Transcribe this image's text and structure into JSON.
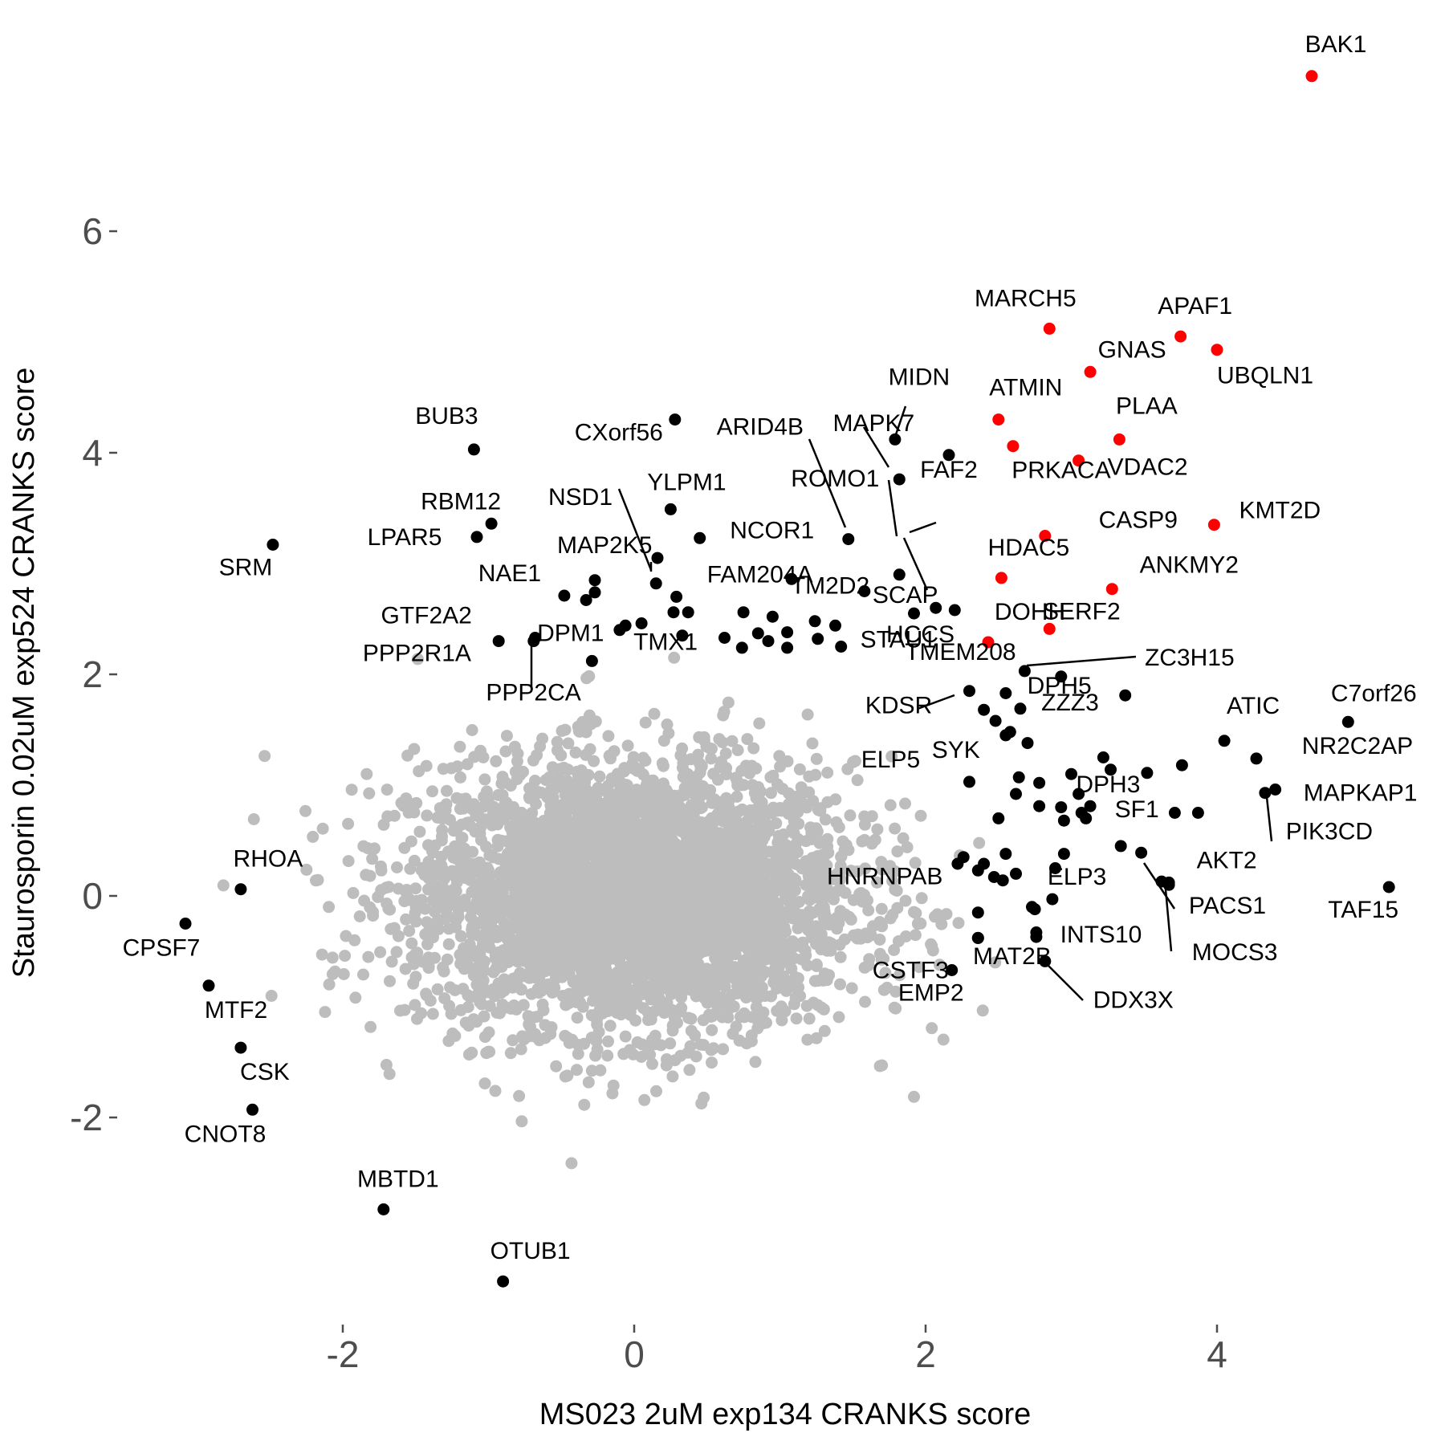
{
  "chart_data": {
    "type": "scatter",
    "title": "",
    "xlabel": "MS023 2uM exp134 CRANKS score",
    "ylabel": "Staurosporin 0.02uM exp524 CRANKS score",
    "xlim": [
      -3.0,
      5.3
    ],
    "ylim": [
      -3.6,
      7.3
    ],
    "x_ticks": [
      -2,
      0,
      2,
      4
    ],
    "x_tick_labels": [
      "-2",
      "0",
      "2",
      "4"
    ],
    "y_ticks": [
      -2,
      0,
      2,
      4,
      6
    ],
    "y_tick_labels": [
      "-2",
      "0",
      "2",
      "4",
      "6"
    ],
    "grid": false,
    "legend": "none",
    "colors": {
      "background": "#bdbdbd",
      "highlighted": "#000000",
      "top_hits": "#ff0000",
      "axis_text": "#4d4d4d"
    },
    "background_points": {
      "description_count": 4000,
      "center": [
        0,
        0
      ],
      "spread_x": 0.75,
      "spread_y": 0.6
    },
    "series": [
      {
        "name": "red",
        "color": "#ff0000",
        "points": [
          {
            "label": "BAK1",
            "x": 4.65,
            "y": 7.4
          },
          {
            "label": "MARCH5",
            "x": 2.85,
            "y": 5.12
          },
          {
            "label": "APAF1",
            "x": 3.75,
            "y": 5.05
          },
          {
            "label": "UBQLN1",
            "x": 4.0,
            "y": 4.93
          },
          {
            "label": "GNAS",
            "x": 3.13,
            "y": 4.73
          },
          {
            "label": "ATMIN",
            "x": 2.5,
            "y": 4.3
          },
          {
            "label": "PLAA",
            "x": 3.33,
            "y": 4.12
          },
          {
            "label": "PRKACA",
            "x": 2.6,
            "y": 4.06
          },
          {
            "label": "VDAC2",
            "x": 3.05,
            "y": 3.93
          },
          {
            "label": "CASP9",
            "x": 2.82,
            "y": 3.25
          },
          {
            "label": "KMT2D",
            "x": 3.98,
            "y": 3.35
          },
          {
            "label": "HDAC5",
            "x": 2.52,
            "y": 2.87
          },
          {
            "label": "ANKMY2",
            "x": 3.28,
            "y": 2.77
          },
          {
            "label": "SERF2",
            "x": 2.85,
            "y": 2.41
          },
          {
            "label": "DOHH",
            "x": 2.43,
            "y": 2.29
          }
        ]
      },
      {
        "name": "black",
        "color": "#000000",
        "points": [
          {
            "label": "BUB3",
            "x": -1.1,
            "y": 4.03
          },
          {
            "label": "SRM",
            "x": -2.48,
            "y": 3.17
          },
          {
            "label": "RBM12",
            "x": -0.98,
            "y": 3.36
          },
          {
            "label": "LPAR5",
            "x": -1.08,
            "y": 3.24
          },
          {
            "label": "CXorf56",
            "x": 0.28,
            "y": 4.3
          },
          {
            "label": "NSD1",
            "x": 0.16,
            "y": 3.05
          },
          {
            "label": "YLPM1",
            "x": 0.25,
            "y": 3.49
          },
          {
            "label": "MAP2K5",
            "x": 0.15,
            "y": 2.82
          },
          {
            "label": "NCOR1",
            "x": 0.45,
            "y": 3.23
          },
          {
            "label": "FAM204A",
            "x": 0.29,
            "y": 2.7
          },
          {
            "label": "ARID4B",
            "x": 1.47,
            "y": 3.22
          },
          {
            "label": "MIDN",
            "x": 1.79,
            "y": 4.12
          },
          {
            "label": "MAPK7",
            "x": 1.82,
            "y": 3.76
          },
          {
            "label": "FAF2",
            "x": 2.16,
            "y": 3.98
          },
          {
            "label": "ROMO1",
            "x": 1.82,
            "y": 2.9
          },
          {
            "label": "SCAP",
            "x": 2.07,
            "y": 2.6
          },
          {
            "label": "HCCS",
            "x": 1.92,
            "y": 2.55
          },
          {
            "label": "TM2D2",
            "x": 1.08,
            "y": 2.86
          },
          {
            "label": "STAU1",
            "x": 1.58,
            "y": 2.75
          },
          {
            "label": "NAE1",
            "x": -0.48,
            "y": 2.71
          },
          {
            "label": "GTF2A2",
            "x": -0.93,
            "y": 2.3
          },
          {
            "label": "DPM1",
            "x": -0.69,
            "y": 2.3
          },
          {
            "label": "PPP2R1A",
            "x": -0.29,
            "y": 2.12
          },
          {
            "label": "PPP2CA",
            "x": -0.68,
            "y": 2.33
          },
          {
            "label": "TMX1",
            "x": -0.06,
            "y": 2.44
          },
          {
            "label": "TMEM208",
            "x": 2.68,
            "y": 2.03
          },
          {
            "label": "ZC3H15",
            "x": 2.93,
            "y": 1.98
          },
          {
            "label": "KDSR",
            "x": 2.3,
            "y": 1.85
          },
          {
            "label": "ZZZ3",
            "x": 2.65,
            "y": 1.69
          },
          {
            "label": "SYK",
            "x": 2.55,
            "y": 1.45
          },
          {
            "label": "ATIC",
            "x": 4.05,
            "y": 1.4
          },
          {
            "label": "C7orf26",
            "x": 4.9,
            "y": 1.57
          },
          {
            "label": "DPH5",
            "x": 3.37,
            "y": 1.81
          },
          {
            "label": "NR2C2AP",
            "x": 4.27,
            "y": 1.24
          },
          {
            "label": "DPH3",
            "x": 3.76,
            "y": 1.18
          },
          {
            "label": "MAPKAP1",
            "x": 4.4,
            "y": 0.96
          },
          {
            "label": "PIK3CD",
            "x": 4.33,
            "y": 0.93
          },
          {
            "label": "ELP5",
            "x": 2.3,
            "y": 1.03
          },
          {
            "label": "SF1",
            "x": 3.34,
            "y": 0.45
          },
          {
            "label": "ELP3",
            "x": 3.48,
            "y": 0.39
          },
          {
            "label": "AKT2",
            "x": 3.67,
            "y": 0.12
          },
          {
            "label": "PACS1",
            "x": 3.62,
            "y": 0.13
          },
          {
            "label": "MOCS3",
            "x": 3.67,
            "y": 0.1
          },
          {
            "label": "TAF15",
            "x": 5.18,
            "y": 0.08
          },
          {
            "label": "HNRNPAB",
            "x": 2.26,
            "y": 0.35
          },
          {
            "label": "INTS10",
            "x": 2.73,
            "y": -0.1
          },
          {
            "label": "CSTF3",
            "x": 2.36,
            "y": -0.38
          },
          {
            "label": "EMP2",
            "x": 2.18,
            "y": -0.67
          },
          {
            "label": "MAT2B",
            "x": 2.76,
            "y": -0.37
          },
          {
            "label": "DDX3X",
            "x": 2.82,
            "y": -0.59
          },
          {
            "label": "RHOA",
            "x": -2.7,
            "y": 0.06
          },
          {
            "label": "CPSF7",
            "x": -3.08,
            "y": -0.25
          },
          {
            "label": "MTF2",
            "x": -2.92,
            "y": -0.81
          },
          {
            "label": "CSK",
            "x": -2.7,
            "y": -1.37
          },
          {
            "label": "CNOT8",
            "x": -2.62,
            "y": -1.93
          },
          {
            "label": "MBTD1",
            "x": -1.72,
            "y": -2.83
          },
          {
            "label": "OTUB1",
            "x": -0.9,
            "y": -3.48
          }
        ]
      },
      {
        "name": "black-unlabeled",
        "color": "#000000",
        "points": [
          {
            "x": -0.27,
            "y": 2.85
          },
          {
            "x": -0.27,
            "y": 2.74
          },
          {
            "x": -0.33,
            "y": 2.67
          },
          {
            "x": -0.1,
            "y": 2.4
          },
          {
            "x": 0.05,
            "y": 2.46
          },
          {
            "x": 0.27,
            "y": 2.56
          },
          {
            "x": 0.37,
            "y": 2.56
          },
          {
            "x": 0.33,
            "y": 2.35
          },
          {
            "x": 0.62,
            "y": 2.33
          },
          {
            "x": 0.75,
            "y": 2.56
          },
          {
            "x": 0.74,
            "y": 2.24
          },
          {
            "x": 0.85,
            "y": 2.37
          },
          {
            "x": 0.92,
            "y": 2.3
          },
          {
            "x": 0.95,
            "y": 2.52
          },
          {
            "x": 1.05,
            "y": 2.38
          },
          {
            "x": 1.05,
            "y": 2.24
          },
          {
            "x": 1.24,
            "y": 2.48
          },
          {
            "x": 1.26,
            "y": 2.32
          },
          {
            "x": 1.38,
            "y": 2.44
          },
          {
            "x": 1.42,
            "y": 2.25
          },
          {
            "x": 2.2,
            "y": 2.58
          },
          {
            "x": 2.55,
            "y": 1.83
          },
          {
            "x": 2.4,
            "y": 1.68
          },
          {
            "x": 2.48,
            "y": 1.58
          },
          {
            "x": 2.58,
            "y": 1.48
          },
          {
            "x": 2.7,
            "y": 1.38
          },
          {
            "x": 2.64,
            "y": 1.07
          },
          {
            "x": 2.62,
            "y": 0.92
          },
          {
            "x": 2.5,
            "y": 0.7
          },
          {
            "x": 2.4,
            "y": 0.29
          },
          {
            "x": 2.55,
            "y": 0.38
          },
          {
            "x": 2.62,
            "y": 0.2
          },
          {
            "x": 2.53,
            "y": 0.14
          },
          {
            "x": 2.47,
            "y": 0.17
          },
          {
            "x": 2.36,
            "y": 0.23
          },
          {
            "x": 2.22,
            "y": 0.29
          },
          {
            "x": 2.78,
            "y": 1.02
          },
          {
            "x": 2.78,
            "y": 0.81
          },
          {
            "x": 2.93,
            "y": 0.8
          },
          {
            "x": 2.95,
            "y": 0.68
          },
          {
            "x": 3.0,
            "y": 1.1
          },
          {
            "x": 3.05,
            "y": 0.92
          },
          {
            "x": 3.07,
            "y": 0.75
          },
          {
            "x": 3.1,
            "y": 0.7
          },
          {
            "x": 3.13,
            "y": 0.81
          },
          {
            "x": 3.22,
            "y": 1.25
          },
          {
            "x": 3.27,
            "y": 1.14
          },
          {
            "x": 3.52,
            "y": 1.11
          },
          {
            "x": 3.87,
            "y": 0.75
          },
          {
            "x": 3.71,
            "y": 0.75
          },
          {
            "x": 2.95,
            "y": 0.38
          },
          {
            "x": 2.89,
            "y": 0.25
          },
          {
            "x": 2.87,
            "y": -0.03
          },
          {
            "x": 2.75,
            "y": -0.12
          },
          {
            "x": 2.76,
            "y": -0.33
          },
          {
            "x": 2.36,
            "y": -0.15
          },
          {
            "x": 2.36,
            "y": -0.38
          }
        ]
      }
    ],
    "annotations_count": 76
  }
}
